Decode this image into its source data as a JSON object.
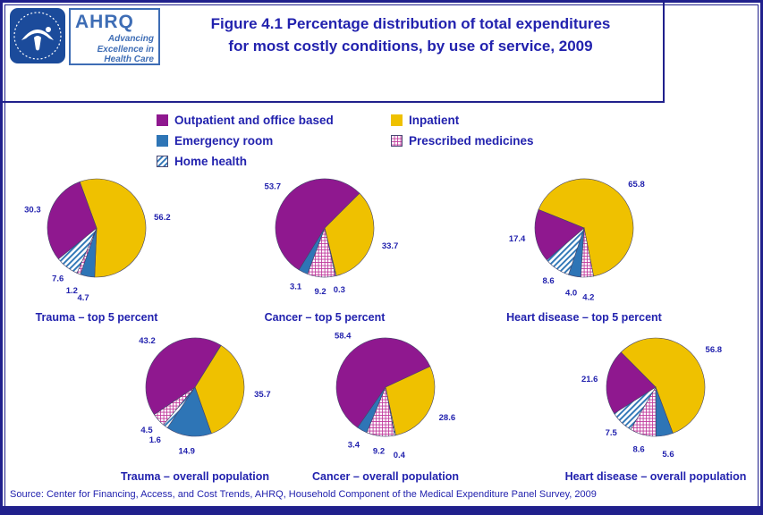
{
  "header": {
    "ahrq_logo": {
      "acronym": "AHRQ",
      "tagline": "Advancing Excellence in Health Care"
    },
    "title_line1": "Figure 4.1 Percentage distribution of total expenditures",
    "title_line2": "for most costly conditions, by use of service, 2009"
  },
  "legend": {
    "items": [
      {
        "key": "outpatient",
        "label": "Outpatient and office based",
        "swatch": "solid",
        "color": "#8F188F"
      },
      {
        "key": "inpatient",
        "label": "Inpatient",
        "swatch": "solid",
        "color": "#EFC100"
      },
      {
        "key": "emergency",
        "label": "Emergency room",
        "swatch": "solid",
        "color": "#2E75B6"
      },
      {
        "key": "prescribed",
        "label": "Prescribed medicines",
        "swatch": "crosshatch",
        "color": "#C0399C"
      },
      {
        "key": "home",
        "label": "Home health",
        "swatch": "diagonal",
        "color": "#2E75B6"
      }
    ]
  },
  "chart_data": {
    "type": "pie",
    "unit": "percent",
    "title": "Figure 4.1 Percentage distribution of total expenditures for most costly conditions, by use of service, 2009",
    "legend_position": "top",
    "pies": [
      {
        "title": "Trauma – top 5 percent",
        "start_angle": -20,
        "segments": [
          {
            "key": "inpatient",
            "value": 56.2,
            "label_r": 1.35
          },
          {
            "key": "emergency",
            "value": 4.7,
            "label_r": 1.45
          },
          {
            "key": "prescribed",
            "value": 1.2,
            "label_r": 1.38
          },
          {
            "key": "home",
            "value": 7.6,
            "label_r": 1.3
          },
          {
            "key": "outpatient",
            "value": 30.3,
            "label_r": 1.35
          }
        ]
      },
      {
        "title": "Cancer –  top 5 percent",
        "start_angle": 45,
        "segments": [
          {
            "key": "inpatient",
            "value": 33.7,
            "label_r": 1.38
          },
          {
            "key": "home",
            "value": 0.3,
            "label_r": 1.3
          },
          {
            "key": "prescribed",
            "value": 9.2,
            "label_r": 1.3
          },
          {
            "key": "emergency",
            "value": 3.1,
            "label_r": 1.34
          },
          {
            "key": "outpatient",
            "value": 53.7,
            "label_r": 1.35
          }
        ]
      },
      {
        "title": "Heart disease –  top 5 percent",
        "start_angle": -68,
        "segments": [
          {
            "key": "inpatient",
            "value": 65.8,
            "label_r": 1.38
          },
          {
            "key": "prescribed",
            "value": 4.2,
            "label_r": 1.42
          },
          {
            "key": "emergency",
            "value": 4.0,
            "label_r": 1.35
          },
          {
            "key": "home",
            "value": 8.6,
            "label_r": 1.3
          },
          {
            "key": "outpatient",
            "value": 17.4,
            "label_r": 1.38
          }
        ]
      },
      {
        "title": "Trauma – overall population",
        "start_angle": 32,
        "segments": [
          {
            "key": "inpatient",
            "value": 35.7,
            "label_r": 1.38
          },
          {
            "key": "emergency",
            "value": 14.9,
            "label_r": 1.32
          },
          {
            "key": "home",
            "value": 1.6,
            "label_r": 1.35
          },
          {
            "key": "prescribed",
            "value": 4.5,
            "label_r": 1.32
          },
          {
            "key": "outpatient",
            "value": 43.2,
            "label_r": 1.35
          }
        ]
      },
      {
        "title": "Cancer – overall population",
        "start_angle": 65,
        "segments": [
          {
            "key": "inpatient",
            "value": 28.6,
            "label_r": 1.4
          },
          {
            "key": "home",
            "value": 0.4,
            "label_r": 1.42
          },
          {
            "key": "prescribed",
            "value": 9.2,
            "label_r": 1.32
          },
          {
            "key": "emergency",
            "value": 3.4,
            "label_r": 1.35
          },
          {
            "key": "outpatient",
            "value": 58.4,
            "label_r": 1.35
          }
        ]
      },
      {
        "title": "Heart disease – overall population",
        "start_angle": -45,
        "segments": [
          {
            "key": "inpatient",
            "value": 56.8,
            "label_r": 1.4
          },
          {
            "key": "emergency",
            "value": 5.6,
            "label_r": 1.4
          },
          {
            "key": "prescribed",
            "value": 8.6,
            "label_r": 1.32
          },
          {
            "key": "home",
            "value": 7.5,
            "label_r": 1.3
          },
          {
            "key": "outpatient",
            "value": 21.6,
            "label_r": 1.35
          }
        ]
      }
    ]
  },
  "source": "Source: Center for Financing, Access, and Cost Trends, AHRQ, Household Component of the Medical Expenditure Panel Survey, 2009"
}
